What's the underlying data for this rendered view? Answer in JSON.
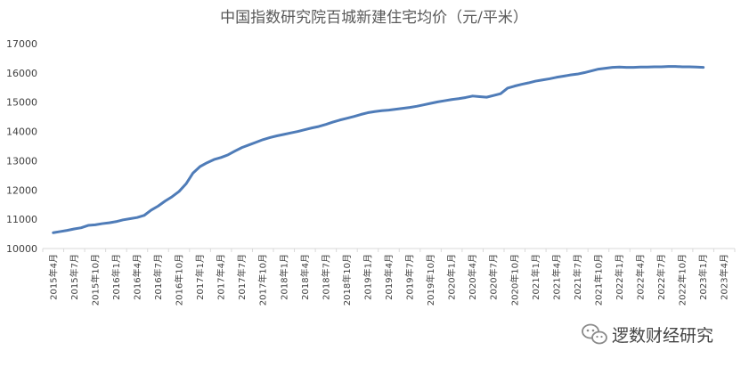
{
  "chart_data": {
    "type": "line",
    "title": "中国指数研究院百城新建住宅均价（元/平米）",
    "xlabel": "",
    "ylabel": "",
    "ylim": [
      10000,
      17000
    ],
    "yticks": [
      10000,
      11000,
      12000,
      13000,
      14000,
      15000,
      16000,
      17000
    ],
    "grid": false,
    "legend": "none",
    "line_color": "#4F7CB8",
    "x_tick_labels": [
      "2015年4月",
      "2015年7月",
      "2015年10月",
      "2016年1月",
      "2016年4月",
      "2016年7月",
      "2016年10月",
      "2017年1月",
      "2017年4月",
      "2017年7月",
      "2017年10月",
      "2018年1月",
      "2018年4月",
      "2018年7月",
      "2018年10月",
      "2019年1月",
      "2019年4月",
      "2019年7月",
      "2019年10月",
      "2020年1月",
      "2020年4月",
      "2020年7月",
      "2020年10月",
      "2021年1月",
      "2021年4月",
      "2021年7月",
      "2021年10月",
      "2022年1月",
      "2022年4月",
      "2022年7月",
      "2022年10月",
      "2023年1月",
      "2023年4月"
    ],
    "series": [
      {
        "values": [
          10540,
          10580,
          10620,
          10670,
          10710,
          10790,
          10810,
          10850,
          10880,
          10920,
          10980,
          11020,
          11060,
          11130,
          11310,
          11450,
          11620,
          11770,
          11950,
          12210,
          12580,
          12800,
          12930,
          13040,
          13110,
          13200,
          13330,
          13450,
          13540,
          13630,
          13720,
          13790,
          13850,
          13900,
          13950,
          14000,
          14060,
          14120,
          14170,
          14240,
          14320,
          14390,
          14450,
          14510,
          14580,
          14640,
          14680,
          14710,
          14730,
          14760,
          14790,
          14820,
          14860,
          14910,
          14960,
          15010,
          15050,
          15090,
          15120,
          15160,
          15210,
          15190,
          15170,
          15230,
          15290,
          15480,
          15550,
          15610,
          15660,
          15720,
          15760,
          15800,
          15850,
          15890,
          15930,
          15960,
          16010,
          16070,
          16130,
          16160,
          16190,
          16200,
          16190,
          16190,
          16200,
          16200,
          16210,
          16210,
          16220,
          16220,
          16210,
          16210,
          16200,
          16190
        ]
      }
    ]
  },
  "watermark": {
    "text": "逻数财经研究",
    "icon": "wechat-icon",
    "icon_color": "#8a8a8a"
  }
}
